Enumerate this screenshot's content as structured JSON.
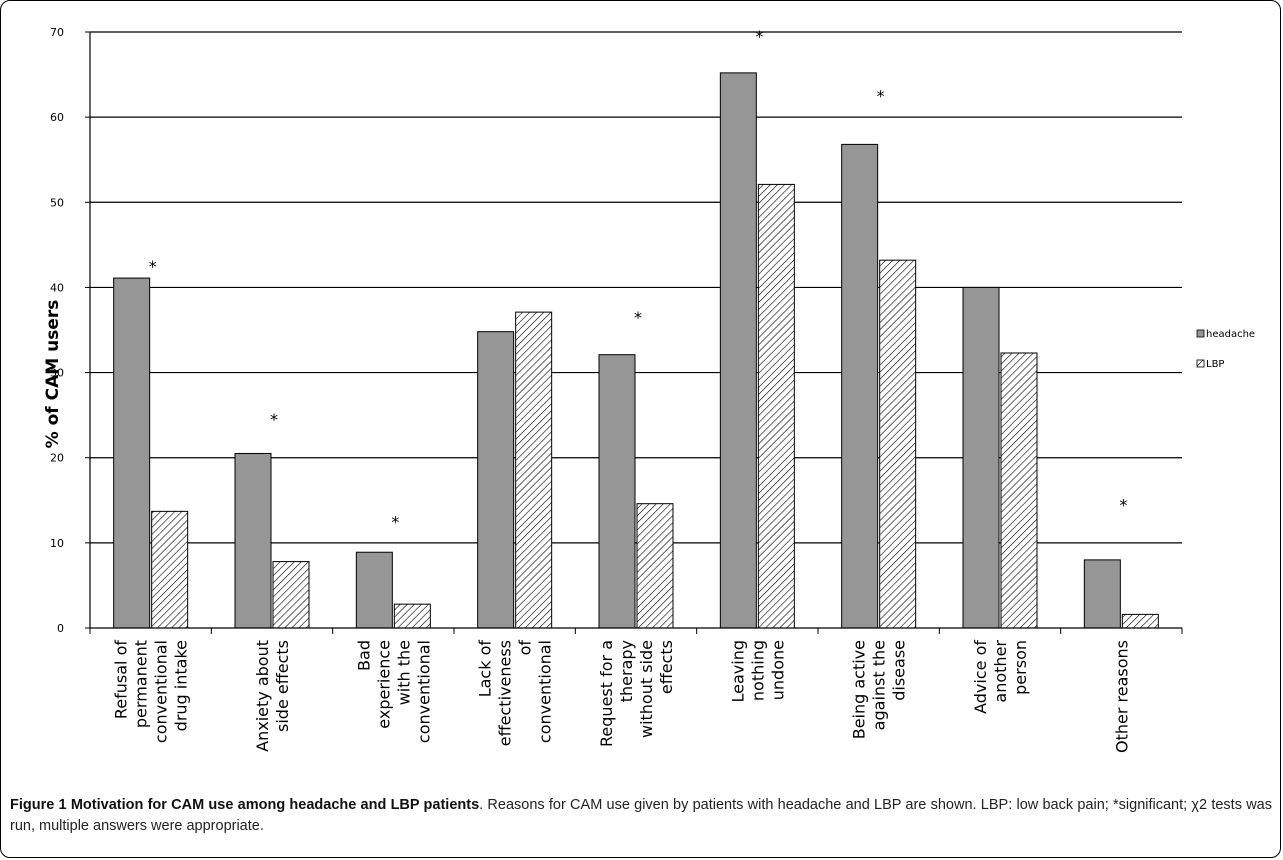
{
  "caption": {
    "title": "Figure 1 Motivation for CAM use among headache and LBP patients",
    "text": ". Reasons for CAM use given by patients with headache and LBP are shown. LBP: low back pain; *significant; χ2 tests was run, multiple answers were appropriate."
  },
  "chart_data": {
    "type": "bar",
    "ylabel": "% of CAM users",
    "ylim": [
      0,
      70
    ],
    "yticks": [
      0,
      10,
      20,
      30,
      40,
      50,
      60,
      70
    ],
    "ytick_labels": [
      "0",
      "10",
      "20",
      "30",
      "40",
      "50",
      "60",
      "70"
    ],
    "grid": true,
    "legend_position": "right",
    "categories": [
      [
        "Refusal of",
        "permanent",
        "conventional",
        "drug intake"
      ],
      [
        "Anxiety about",
        "side effects"
      ],
      [
        "Bad",
        "experience",
        "with the",
        "conventional"
      ],
      [
        "Lack of",
        "effectiveness",
        "of",
        "conventional"
      ],
      [
        "Request for a",
        "therapy",
        "without side",
        "effects"
      ],
      [
        "Leaving",
        "nothing",
        "undone"
      ],
      [
        "Being active",
        "against the",
        "disease"
      ],
      [
        "Advice of",
        "another",
        "person"
      ],
      [
        "Other reasons"
      ]
    ],
    "series": [
      {
        "name": "headache",
        "color": "#969696",
        "pattern": "solid",
        "values": [
          41.1,
          20.5,
          8.9,
          34.8,
          32.1,
          65.2,
          56.8,
          40.0,
          8.0
        ]
      },
      {
        "name": "LBP",
        "color": "#ffffff",
        "pattern": "hatched",
        "values": [
          13.7,
          7.8,
          2.8,
          37.1,
          14.6,
          52.1,
          43.2,
          32.3,
          1.6
        ]
      }
    ],
    "annotations": [
      {
        "category_index": 0,
        "text": "*",
        "y": 43
      },
      {
        "category_index": 1,
        "text": "*",
        "y": 25
      },
      {
        "category_index": 2,
        "text": "*",
        "y": 13
      },
      {
        "category_index": 4,
        "text": "*",
        "y": 37
      },
      {
        "category_index": 5,
        "text": "*",
        "y": 70
      },
      {
        "category_index": 6,
        "text": "*",
        "y": 63
      },
      {
        "category_index": 8,
        "text": "*",
        "y": 15
      }
    ]
  }
}
